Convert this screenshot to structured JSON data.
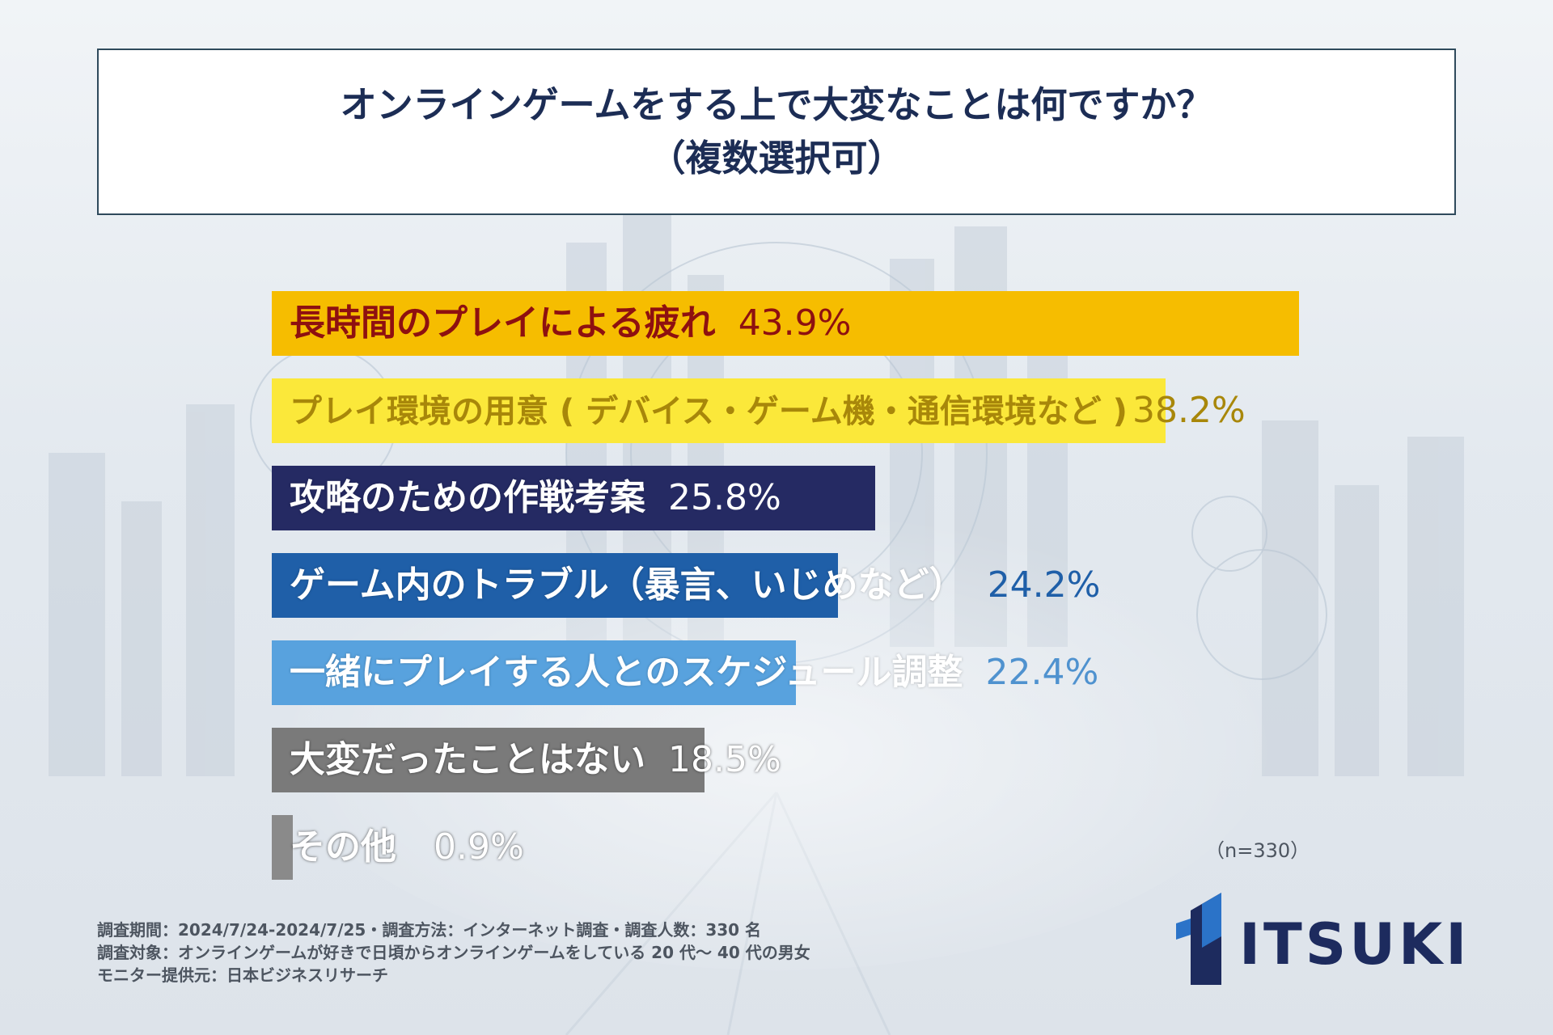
{
  "title": {
    "line1": "オンラインゲームをする上で大変なことは何ですか？",
    "line2": "（複数選択可）"
  },
  "chart_data": {
    "type": "bar",
    "orientation": "horizontal",
    "title": "オンラインゲームをする上で大変なことは何ですか？（複数選択可）",
    "unit": "%",
    "xlim": [
      0,
      45
    ],
    "categories": [
      "長時間のプレイによる疲れ",
      "プレイ環境の用意 ( デバイス・ゲーム機・通信環境など )",
      "攻略のための作戦考案",
      "ゲーム内のトラブル（暴言、いじめなど）",
      "一緒にプレイする人とのスケジュール調整",
      "大変だったことはない",
      "その他"
    ],
    "values": [
      43.9,
      38.2,
      25.8,
      24.2,
      22.4,
      18.5,
      0.9
    ],
    "value_labels": [
      "43.9%",
      "38.2%",
      "25.8%",
      "24.2%",
      "22.4%",
      "18.5%",
      "0.9%"
    ],
    "bar_colors": [
      "#f6bd00",
      "#fbe83a",
      "#252a63",
      "#1f5fa8",
      "#58a2de",
      "#7a7a7a",
      "#8a8a8a"
    ],
    "label_colors": [
      "#8e1010",
      "#a8870a",
      "#ffffff",
      "#ffffff",
      "#ffffff",
      "#ffffff",
      "#ffffff"
    ],
    "value_colors": [
      "#8e1010",
      "#a8870a",
      "#ffffff",
      "#1f5fa8",
      "#4f92cf",
      "#ffffff",
      "#ffffff"
    ]
  },
  "sample_note": "（n=330）",
  "footer": {
    "line1": "調査期間：2024/7/24-2024/7/25・調査方法：インターネット調査・調査人数：330 名",
    "line2": "調査対象：オンラインゲームが好きで日頃からオンラインゲームをしている 20 代～ 40 代の男女",
    "line3": "モニター提供元：日本ビジネスリサーチ"
  },
  "logo": {
    "text": "ITSUKI"
  },
  "colors": {
    "title_text": "#1c2d55",
    "title_border": "#2f4a5c",
    "logo_dark": "#1d2b5e",
    "logo_blue": "#2b73c8"
  }
}
